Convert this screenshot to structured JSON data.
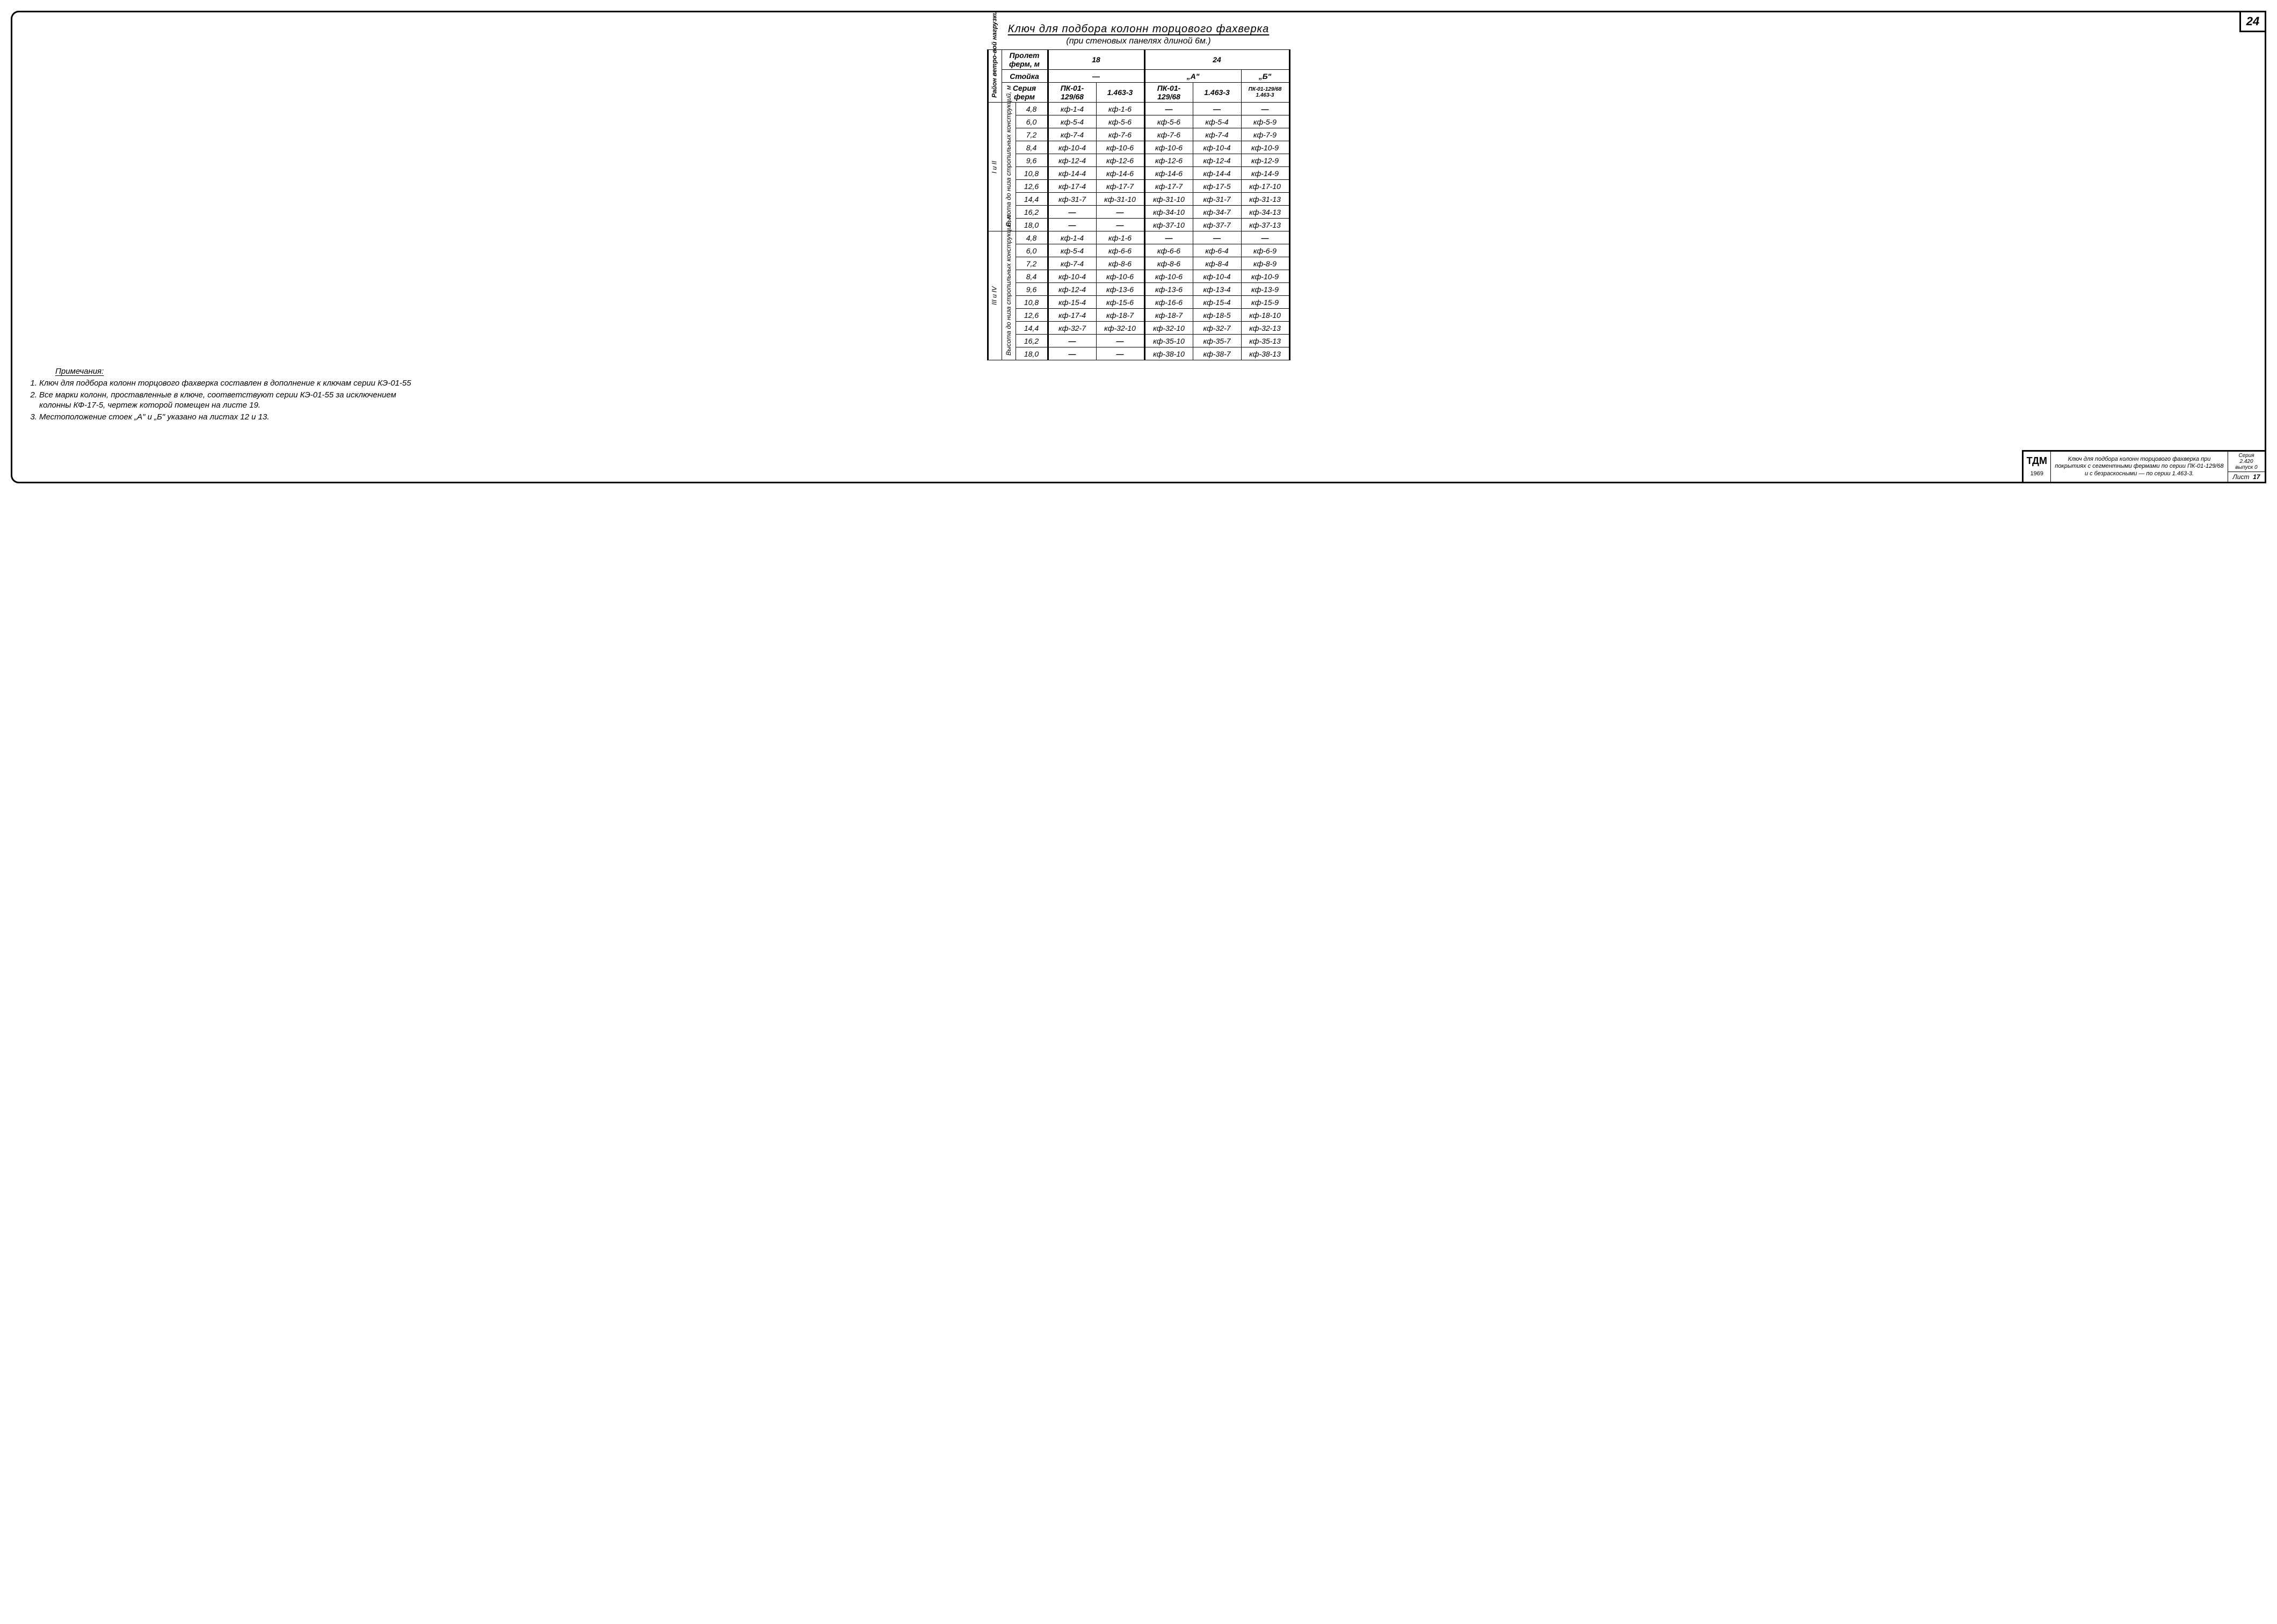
{
  "page_number": "24",
  "title": "Ключ для подбора колонн торцового фахверка",
  "subtitle": "(при стеновых панелях длиной 6м.)",
  "header": {
    "corner_vert": "Район ветро-вой нагрузки",
    "span_label": "Пролет ферм, м",
    "span_18": "18",
    "span_24": "24",
    "post_label": "Стойка",
    "post_dash": "—",
    "post_a": "„А\"",
    "post_b": "„Б\"",
    "series_label": "Серия ферм",
    "s1": "ПК-01-129/68",
    "s2": "1.463-3",
    "s3": "ПК-01-129/68",
    "s4": "1.463-3",
    "s5": "ПК-01-129/68 1.463-3"
  },
  "groups": [
    {
      "region": "I и II",
      "height_label": "Высота до низа стропильных конструкций, м",
      "rows": [
        {
          "h": "4,8",
          "c": [
            "кф-1-4",
            "кф-1-6",
            "—",
            "—",
            "—"
          ]
        },
        {
          "h": "6,0",
          "c": [
            "кф-5-4",
            "кф-5-6",
            "кф-5-6",
            "кф-5-4",
            "кф-5-9"
          ]
        },
        {
          "h": "7,2",
          "c": [
            "кф-7-4",
            "кф-7-6",
            "кф-7-6",
            "кф-7-4",
            "кф-7-9"
          ]
        },
        {
          "h": "8,4",
          "c": [
            "кф-10-4",
            "кф-10-6",
            "кф-10-6",
            "кф-10-4",
            "кф-10-9"
          ]
        },
        {
          "h": "9,6",
          "c": [
            "кф-12-4",
            "кф-12-6",
            "кф-12-6",
            "кф-12-4",
            "кф-12-9"
          ]
        },
        {
          "h": "10,8",
          "c": [
            "кф-14-4",
            "кф-14-6",
            "кф-14-6",
            "кф-14-4",
            "кф-14-9"
          ]
        },
        {
          "h": "12,6",
          "c": [
            "кф-17-4",
            "кф-17-7",
            "кф-17-7",
            "кф-17-5",
            "кф-17-10"
          ]
        },
        {
          "h": "14,4",
          "c": [
            "кф-31-7",
            "кф-31-10",
            "кф-31-10",
            "кф-31-7",
            "кф-31-13"
          ]
        },
        {
          "h": "16,2",
          "c": [
            "—",
            "—",
            "кф-34-10",
            "кф-34-7",
            "кф-34-13"
          ]
        },
        {
          "h": "18,0",
          "c": [
            "—",
            "—",
            "кф-37-10",
            "кф-37-7",
            "кф-37-13"
          ]
        }
      ]
    },
    {
      "region": "III и IV",
      "height_label": "Высота до низа стропильных конструкций, м",
      "rows": [
        {
          "h": "4,8",
          "c": [
            "кф-1-4",
            "кф-1-6",
            "—",
            "—",
            "—"
          ]
        },
        {
          "h": "6,0",
          "c": [
            "кф-5-4",
            "кф-6-6",
            "кф-6-6",
            "кф-6-4",
            "кф-6-9"
          ]
        },
        {
          "h": "7,2",
          "c": [
            "кф-7-4",
            "кф-8-6",
            "кф-8-6",
            "кф-8-4",
            "кф-8-9"
          ]
        },
        {
          "h": "8,4",
          "c": [
            "кф-10-4",
            "кф-10-6",
            "кф-10-6",
            "кф-10-4",
            "кф-10-9"
          ]
        },
        {
          "h": "9,6",
          "c": [
            "кф-12-4",
            "кф-13-6",
            "кф-13-6",
            "кф-13-4",
            "кф-13-9"
          ]
        },
        {
          "h": "10,8",
          "c": [
            "кф-15-4",
            "кф-15-6",
            "кф-16-6",
            "кф-15-4",
            "кф-15-9"
          ]
        },
        {
          "h": "12,6",
          "c": [
            "кф-17-4",
            "кф-18-7",
            "кф-18-7",
            "кф-18-5",
            "кф-18-10"
          ]
        },
        {
          "h": "14,4",
          "c": [
            "кф-32-7",
            "кф-32-10",
            "кф-32-10",
            "кф-32-7",
            "кф-32-13"
          ]
        },
        {
          "h": "16,2",
          "c": [
            "—",
            "—",
            "кф-35-10",
            "кф-35-7",
            "кф-35-13"
          ]
        },
        {
          "h": "18,0",
          "c": [
            "—",
            "—",
            "кф-38-10",
            "кф-38-7",
            "кф-38-13"
          ]
        }
      ]
    }
  ],
  "notes": {
    "heading": "Примечания:",
    "items": [
      "Ключ для подбора колонн торцового фахверка составлен в дополнение к ключам серии КЭ-01-55",
      "Все марки колонн, проставленные в ключе, соответствуют серии КЭ-01-55 за исключением колонны КФ-17-5, чертеж которой помещен на листе 19.",
      "Местоположение стоек „А\" и „Б\" указано на листах 12 и 13."
    ]
  },
  "stamp": {
    "logo": "ТДМ",
    "year": "1969",
    "desc": "Ключ для подбора колонн торцового фахверка при покрытиях с сегментными фермами по серии ПК-01-129/68 и с безраскосными — по серии 1.463-3.",
    "series_l": "Серия 2.420",
    "issue": "выпуск 0",
    "sheet_l": "Лист",
    "sheet_n": "17"
  }
}
